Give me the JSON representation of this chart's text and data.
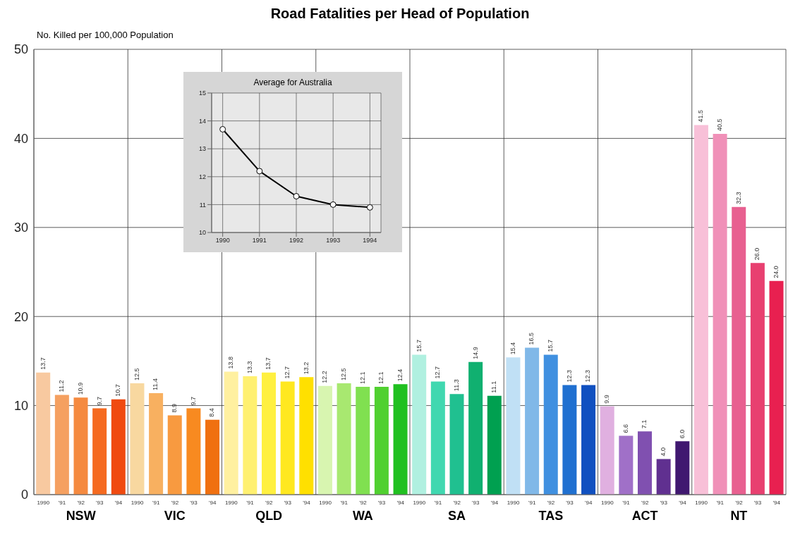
{
  "chart_data": [
    {
      "type": "bar",
      "title": "Road Fatalities per Head of Population",
      "ylabel": "No. Killed per 100,000 Population",
      "categories": [
        "1990",
        "'91",
        "'92",
        "'93",
        "'94",
        "1990",
        "'91",
        "'92",
        "'93",
        "'94",
        "1990",
        "'91",
        "'92",
        "'93",
        "'94",
        "1990",
        "'91",
        "'92",
        "'93",
        "'94",
        "1990",
        "'91",
        "'92",
        "'93",
        "'94",
        "1990",
        "'91",
        "'92",
        "'93",
        "'94",
        "1990",
        "'91",
        "'92",
        "'93",
        "'94",
        "1990",
        "'91",
        "'92",
        "'93",
        "'94"
      ],
      "values": [
        13.7,
        11.2,
        10.9,
        9.7,
        10.7,
        12.5,
        11.4,
        8.9,
        9.7,
        8.4,
        13.8,
        13.3,
        13.7,
        12.7,
        13.2,
        12.2,
        12.5,
        12.1,
        12.1,
        12.4,
        15.7,
        12.7,
        11.3,
        14.9,
        11.1,
        15.4,
        16.5,
        15.7,
        12.3,
        12.3,
        9.9,
        6.6,
        7.1,
        4.0,
        6.0,
        41.5,
        40.5,
        32.3,
        26.0,
        24.0
      ],
      "value_labels": [
        "13.7",
        "11.2",
        "10.9",
        "9.7",
        "10.7",
        "12.5",
        "11.4",
        "8.9",
        "9.7",
        "8.4",
        "13.8",
        "13.3",
        "13.7",
        "12.7",
        "13.2",
        "12.2",
        "12.5",
        "12.1",
        "12.1",
        "12.4",
        "15.7",
        "12.7",
        "11.3",
        "14.9",
        "11.1",
        "15.4",
        "16.5",
        "15.7",
        "12.3",
        "12.3",
        "9.9",
        "6.6",
        "7.1",
        "4.0",
        "6.0",
        "41.5",
        "40.5",
        "32.3",
        "26.0",
        "24.0"
      ],
      "colors": [
        "#f8c9a0",
        "#f5a060",
        "#f58a40",
        "#f56a20",
        "#f04a10",
        "#f8d8a0",
        "#f8b060",
        "#f89a40",
        "#f88a20",
        "#f07010",
        "#fff0a0",
        "#fff070",
        "#fff040",
        "#ffe820",
        "#ffe000",
        "#d8f5b0",
        "#a8e870",
        "#80e050",
        "#50d030",
        "#20c020",
        "#b0f0e0",
        "#40d8b0",
        "#20c090",
        "#10b070",
        "#00a050",
        "#c0e0f5",
        "#80b8e8",
        "#4090e0",
        "#2070d0",
        "#1050c0",
        "#e0b0e0",
        "#a070c8",
        "#8050b0",
        "#603090",
        "#401870",
        "#f8c0d8",
        "#f090b8",
        "#e86090",
        "#e84070",
        "#e82050"
      ],
      "annotations": [
        "NSW",
        "VIC",
        "QLD",
        "WA",
        "SA",
        "TAS",
        "ACT",
        "NT"
      ],
      "ylim": [
        0,
        50
      ],
      "yticks": [
        0,
        10,
        20,
        30,
        40,
        50
      ],
      "grid": true
    },
    {
      "type": "line",
      "title": "Average for Australia",
      "x": [
        1990,
        1991,
        1992,
        1993,
        1994
      ],
      "values": [
        13.7,
        12.2,
        11.3,
        11.0,
        10.9
      ],
      "color": "#000000",
      "marker": "circle",
      "xlim": [
        1989.7,
        1994.3
      ],
      "xticks": [
        1990,
        1991,
        1992,
        1993,
        1994
      ],
      "ylim": [
        10,
        15
      ],
      "yticks": [
        10,
        11,
        12,
        13,
        14,
        15
      ],
      "grid": true
    }
  ]
}
